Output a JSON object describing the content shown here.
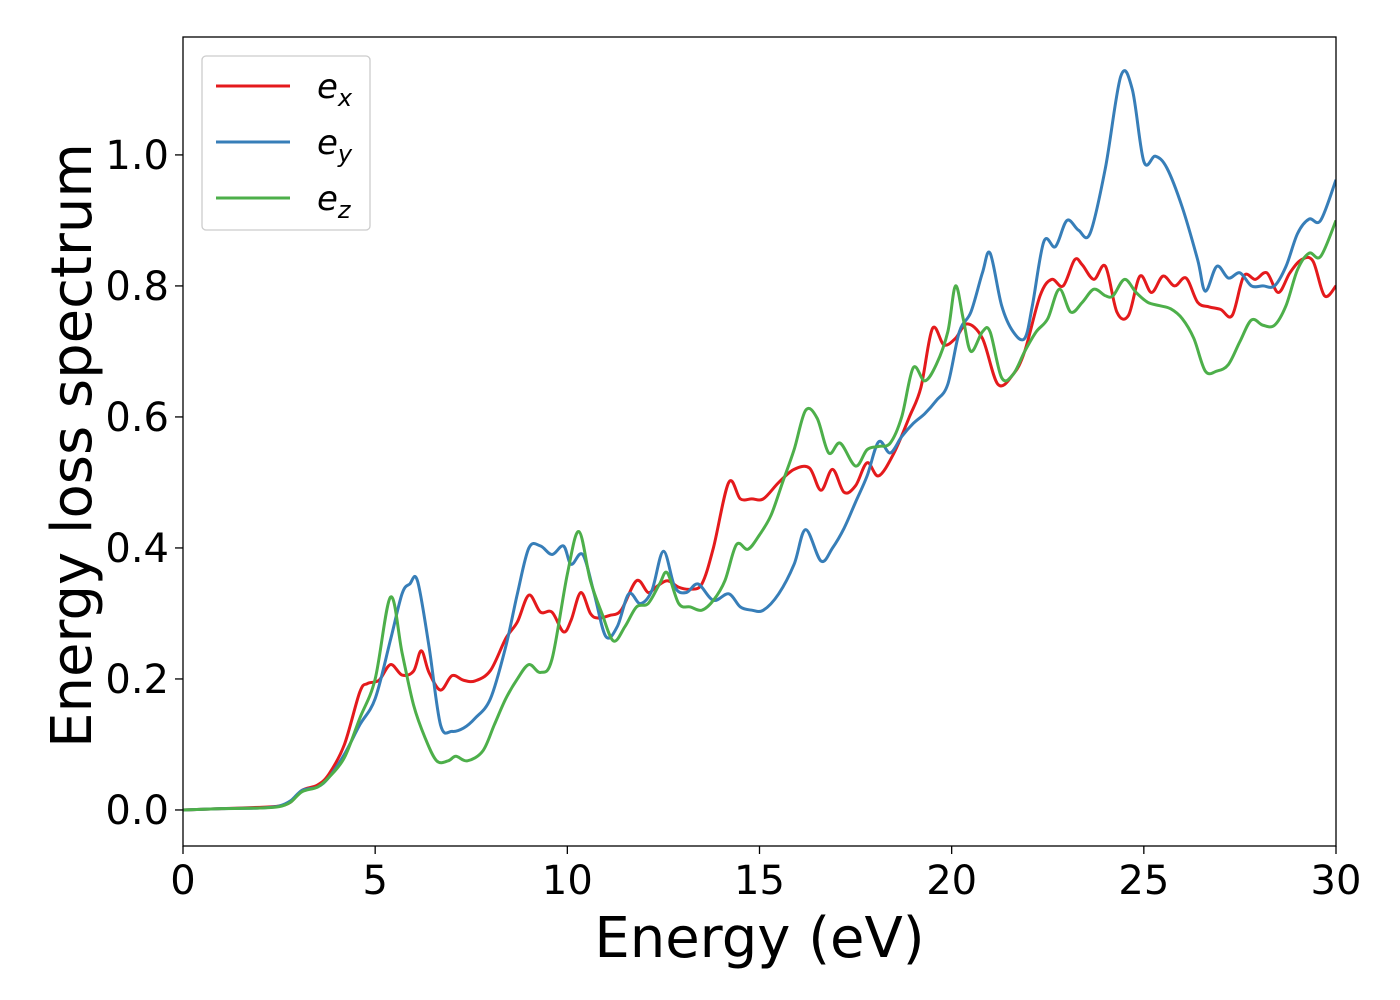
{
  "chart_data": {
    "type": "line",
    "xlabel": "Energy (eV)",
    "ylabel": "Energy loss spectrum",
    "xlim": [
      0,
      30
    ],
    "ylim": [
      -0.055,
      1.18
    ],
    "xticks": [
      "0",
      "5",
      "10",
      "15",
      "20",
      "25",
      "30"
    ],
    "yticks": [
      "0.0",
      "0.2",
      "0.4",
      "0.6",
      "0.8",
      "1.0"
    ],
    "grid": false,
    "legend_position": "top-left",
    "series": [
      {
        "name": "e",
        "subscript": "x",
        "color": "#e41a1c",
        "points": [
          [
            0,
            0
          ],
          [
            1,
            0.002
          ],
          [
            2,
            0.004
          ],
          [
            2.5,
            0.006
          ],
          [
            2.8,
            0.012
          ],
          [
            3.1,
            0.03
          ],
          [
            3.5,
            0.038
          ],
          [
            3.8,
            0.055
          ],
          [
            4.2,
            0.1
          ],
          [
            4.6,
            0.18
          ],
          [
            4.8,
            0.193
          ],
          [
            5.1,
            0.198
          ],
          [
            5.4,
            0.222
          ],
          [
            5.7,
            0.206
          ],
          [
            6.0,
            0.212
          ],
          [
            6.2,
            0.243
          ],
          [
            6.4,
            0.21
          ],
          [
            6.7,
            0.183
          ],
          [
            7.0,
            0.205
          ],
          [
            7.3,
            0.198
          ],
          [
            7.6,
            0.197
          ],
          [
            8.0,
            0.213
          ],
          [
            8.4,
            0.262
          ],
          [
            8.7,
            0.287
          ],
          [
            9.0,
            0.328
          ],
          [
            9.3,
            0.302
          ],
          [
            9.6,
            0.302
          ],
          [
            9.9,
            0.272
          ],
          [
            10.1,
            0.29
          ],
          [
            10.35,
            0.332
          ],
          [
            10.6,
            0.3
          ],
          [
            10.8,
            0.293
          ],
          [
            11.1,
            0.297
          ],
          [
            11.4,
            0.305
          ],
          [
            11.8,
            0.35
          ],
          [
            12.1,
            0.332
          ],
          [
            12.3,
            0.34
          ],
          [
            12.6,
            0.35
          ],
          [
            12.9,
            0.34
          ],
          [
            13.2,
            0.337
          ],
          [
            13.5,
            0.345
          ],
          [
            13.8,
            0.4
          ],
          [
            14.2,
            0.5
          ],
          [
            14.5,
            0.475
          ],
          [
            14.8,
            0.475
          ],
          [
            15.1,
            0.475
          ],
          [
            15.5,
            0.5
          ],
          [
            15.9,
            0.52
          ],
          [
            16.3,
            0.522
          ],
          [
            16.6,
            0.488
          ],
          [
            16.9,
            0.52
          ],
          [
            17.2,
            0.485
          ],
          [
            17.5,
            0.495
          ],
          [
            17.8,
            0.53
          ],
          [
            18.1,
            0.51
          ],
          [
            18.5,
            0.545
          ],
          [
            18.9,
            0.6
          ],
          [
            19.2,
            0.645
          ],
          [
            19.5,
            0.735
          ],
          [
            19.8,
            0.71
          ],
          [
            20.1,
            0.72
          ],
          [
            20.4,
            0.742
          ],
          [
            20.8,
            0.72
          ],
          [
            21.2,
            0.65
          ],
          [
            21.6,
            0.665
          ],
          [
            21.9,
            0.7
          ],
          [
            22.3,
            0.785
          ],
          [
            22.6,
            0.81
          ],
          [
            22.9,
            0.8
          ],
          [
            23.2,
            0.84
          ],
          [
            23.4,
            0.832
          ],
          [
            23.7,
            0.81
          ],
          [
            24.0,
            0.83
          ],
          [
            24.3,
            0.76
          ],
          [
            24.6,
            0.755
          ],
          [
            24.9,
            0.815
          ],
          [
            25.2,
            0.79
          ],
          [
            25.5,
            0.815
          ],
          [
            25.8,
            0.8
          ],
          [
            26.1,
            0.812
          ],
          [
            26.4,
            0.775
          ],
          [
            26.7,
            0.768
          ],
          [
            27.0,
            0.764
          ],
          [
            27.3,
            0.755
          ],
          [
            27.6,
            0.815
          ],
          [
            27.9,
            0.81
          ],
          [
            28.2,
            0.82
          ],
          [
            28.5,
            0.79
          ],
          [
            28.8,
            0.82
          ],
          [
            29.1,
            0.84
          ],
          [
            29.4,
            0.838
          ],
          [
            29.7,
            0.785
          ],
          [
            30.0,
            0.8
          ]
        ]
      },
      {
        "name": "e",
        "subscript": "y",
        "color": "#377eb8",
        "points": [
          [
            0,
            0
          ],
          [
            1,
            0.002
          ],
          [
            2,
            0.003
          ],
          [
            2.5,
            0.006
          ],
          [
            2.8,
            0.014
          ],
          [
            3.1,
            0.03
          ],
          [
            3.5,
            0.035
          ],
          [
            3.8,
            0.05
          ],
          [
            4.2,
            0.085
          ],
          [
            4.6,
            0.13
          ],
          [
            5.0,
            0.17
          ],
          [
            5.4,
            0.26
          ],
          [
            5.7,
            0.33
          ],
          [
            5.9,
            0.345
          ],
          [
            6.1,
            0.35
          ],
          [
            6.4,
            0.25
          ],
          [
            6.7,
            0.13
          ],
          [
            7.0,
            0.12
          ],
          [
            7.3,
            0.125
          ],
          [
            7.6,
            0.14
          ],
          [
            8.0,
            0.17
          ],
          [
            8.4,
            0.25
          ],
          [
            8.7,
            0.33
          ],
          [
            9.0,
            0.4
          ],
          [
            9.3,
            0.403
          ],
          [
            9.6,
            0.39
          ],
          [
            9.9,
            0.403
          ],
          [
            10.1,
            0.375
          ],
          [
            10.4,
            0.39
          ],
          [
            10.7,
            0.33
          ],
          [
            11.0,
            0.265
          ],
          [
            11.3,
            0.28
          ],
          [
            11.6,
            0.33
          ],
          [
            11.9,
            0.315
          ],
          [
            12.2,
            0.335
          ],
          [
            12.5,
            0.395
          ],
          [
            12.8,
            0.34
          ],
          [
            13.1,
            0.332
          ],
          [
            13.4,
            0.345
          ],
          [
            13.8,
            0.32
          ],
          [
            14.2,
            0.33
          ],
          [
            14.5,
            0.31
          ],
          [
            14.8,
            0.305
          ],
          [
            15.1,
            0.305
          ],
          [
            15.5,
            0.33
          ],
          [
            15.9,
            0.375
          ],
          [
            16.2,
            0.428
          ],
          [
            16.6,
            0.38
          ],
          [
            16.9,
            0.4
          ],
          [
            17.2,
            0.43
          ],
          [
            17.5,
            0.47
          ],
          [
            17.8,
            0.51
          ],
          [
            18.1,
            0.562
          ],
          [
            18.4,
            0.545
          ],
          [
            18.7,
            0.57
          ],
          [
            19.0,
            0.59
          ],
          [
            19.3,
            0.605
          ],
          [
            19.6,
            0.625
          ],
          [
            19.9,
            0.65
          ],
          [
            20.2,
            0.73
          ],
          [
            20.5,
            0.76
          ],
          [
            20.8,
            0.82
          ],
          [
            21.0,
            0.85
          ],
          [
            21.3,
            0.77
          ],
          [
            21.6,
            0.73
          ],
          [
            21.9,
            0.72
          ],
          [
            22.1,
            0.77
          ],
          [
            22.4,
            0.868
          ],
          [
            22.7,
            0.86
          ],
          [
            23.0,
            0.9
          ],
          [
            23.3,
            0.885
          ],
          [
            23.6,
            0.88
          ],
          [
            24.0,
            0.98
          ],
          [
            24.4,
            1.12
          ],
          [
            24.7,
            1.1
          ],
          [
            25.0,
            0.99
          ],
          [
            25.3,
            0.998
          ],
          [
            25.6,
            0.98
          ],
          [
            26.0,
            0.92
          ],
          [
            26.4,
            0.84
          ],
          [
            26.6,
            0.792
          ],
          [
            26.9,
            0.83
          ],
          [
            27.2,
            0.812
          ],
          [
            27.5,
            0.82
          ],
          [
            27.8,
            0.8
          ],
          [
            28.1,
            0.8
          ],
          [
            28.4,
            0.8
          ],
          [
            28.7,
            0.83
          ],
          [
            29.0,
            0.88
          ],
          [
            29.3,
            0.902
          ],
          [
            29.6,
            0.9
          ],
          [
            30.0,
            0.962
          ]
        ]
      },
      {
        "name": "e",
        "subscript": "z",
        "color": "#4daf4a",
        "points": [
          [
            0,
            0
          ],
          [
            1,
            0.002
          ],
          [
            2,
            0.003
          ],
          [
            2.5,
            0.005
          ],
          [
            2.8,
            0.012
          ],
          [
            3.1,
            0.028
          ],
          [
            3.5,
            0.035
          ],
          [
            3.8,
            0.05
          ],
          [
            4.2,
            0.08
          ],
          [
            4.6,
            0.14
          ],
          [
            5.0,
            0.2
          ],
          [
            5.4,
            0.325
          ],
          [
            5.7,
            0.24
          ],
          [
            6.0,
            0.16
          ],
          [
            6.3,
            0.11
          ],
          [
            6.6,
            0.075
          ],
          [
            6.9,
            0.075
          ],
          [
            7.1,
            0.082
          ],
          [
            7.4,
            0.075
          ],
          [
            7.8,
            0.09
          ],
          [
            8.1,
            0.13
          ],
          [
            8.4,
            0.17
          ],
          [
            8.7,
            0.2
          ],
          [
            9.0,
            0.222
          ],
          [
            9.3,
            0.21
          ],
          [
            9.6,
            0.23
          ],
          [
            10.0,
            0.36
          ],
          [
            10.3,
            0.425
          ],
          [
            10.6,
            0.35
          ],
          [
            10.9,
            0.3
          ],
          [
            11.2,
            0.258
          ],
          [
            11.5,
            0.28
          ],
          [
            11.8,
            0.31
          ],
          [
            12.1,
            0.315
          ],
          [
            12.4,
            0.345
          ],
          [
            12.6,
            0.362
          ],
          [
            12.9,
            0.315
          ],
          [
            13.2,
            0.31
          ],
          [
            13.5,
            0.305
          ],
          [
            13.8,
            0.32
          ],
          [
            14.1,
            0.35
          ],
          [
            14.4,
            0.405
          ],
          [
            14.7,
            0.398
          ],
          [
            15.0,
            0.42
          ],
          [
            15.3,
            0.45
          ],
          [
            15.6,
            0.5
          ],
          [
            15.9,
            0.55
          ],
          [
            16.2,
            0.61
          ],
          [
            16.5,
            0.598
          ],
          [
            16.8,
            0.545
          ],
          [
            17.1,
            0.56
          ],
          [
            17.5,
            0.525
          ],
          [
            17.8,
            0.55
          ],
          [
            18.1,
            0.555
          ],
          [
            18.4,
            0.56
          ],
          [
            18.7,
            0.6
          ],
          [
            19.0,
            0.675
          ],
          [
            19.3,
            0.655
          ],
          [
            19.6,
            0.68
          ],
          [
            19.9,
            0.73
          ],
          [
            20.1,
            0.8
          ],
          [
            20.3,
            0.75
          ],
          [
            20.5,
            0.7
          ],
          [
            20.8,
            0.73
          ],
          [
            21.0,
            0.73
          ],
          [
            21.3,
            0.66
          ],
          [
            21.6,
            0.665
          ],
          [
            21.9,
            0.7
          ],
          [
            22.2,
            0.73
          ],
          [
            22.5,
            0.75
          ],
          [
            22.8,
            0.795
          ],
          [
            23.1,
            0.76
          ],
          [
            23.4,
            0.775
          ],
          [
            23.7,
            0.795
          ],
          [
            24.0,
            0.785
          ],
          [
            24.2,
            0.785
          ],
          [
            24.5,
            0.81
          ],
          [
            24.8,
            0.79
          ],
          [
            25.1,
            0.775
          ],
          [
            25.4,
            0.77
          ],
          [
            25.7,
            0.765
          ],
          [
            26.0,
            0.75
          ],
          [
            26.3,
            0.72
          ],
          [
            26.6,
            0.67
          ],
          [
            26.9,
            0.67
          ],
          [
            27.2,
            0.68
          ],
          [
            27.5,
            0.715
          ],
          [
            27.8,
            0.748
          ],
          [
            28.1,
            0.74
          ],
          [
            28.4,
            0.74
          ],
          [
            28.7,
            0.77
          ],
          [
            29.0,
            0.825
          ],
          [
            29.3,
            0.85
          ],
          [
            29.6,
            0.845
          ],
          [
            30.0,
            0.9
          ]
        ]
      }
    ]
  }
}
